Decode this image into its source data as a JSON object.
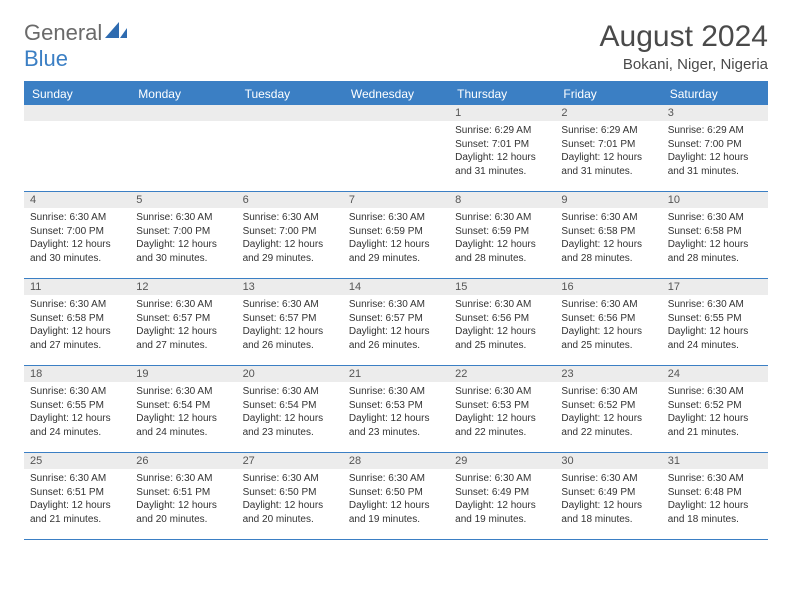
{
  "logo": {
    "word1": "General",
    "word2": "Blue"
  },
  "title": {
    "month": "August 2024",
    "location": "Bokani, Niger, Nigeria"
  },
  "colors": {
    "accent": "#3b7fc4",
    "header_text": "#ffffff",
    "daynum_bg": "#ececec",
    "body_text": "#333333",
    "logo_gray": "#6a6a6a"
  },
  "dayHeaders": [
    "Sunday",
    "Monday",
    "Tuesday",
    "Wednesday",
    "Thursday",
    "Friday",
    "Saturday"
  ],
  "weeks": [
    [
      null,
      null,
      null,
      null,
      {
        "n": "1",
        "sunrise": "Sunrise: 6:29 AM",
        "sunset": "Sunset: 7:01 PM",
        "daylight": "Daylight: 12 hours and 31 minutes."
      },
      {
        "n": "2",
        "sunrise": "Sunrise: 6:29 AM",
        "sunset": "Sunset: 7:01 PM",
        "daylight": "Daylight: 12 hours and 31 minutes."
      },
      {
        "n": "3",
        "sunrise": "Sunrise: 6:29 AM",
        "sunset": "Sunset: 7:00 PM",
        "daylight": "Daylight: 12 hours and 31 minutes."
      }
    ],
    [
      {
        "n": "4",
        "sunrise": "Sunrise: 6:30 AM",
        "sunset": "Sunset: 7:00 PM",
        "daylight": "Daylight: 12 hours and 30 minutes."
      },
      {
        "n": "5",
        "sunrise": "Sunrise: 6:30 AM",
        "sunset": "Sunset: 7:00 PM",
        "daylight": "Daylight: 12 hours and 30 minutes."
      },
      {
        "n": "6",
        "sunrise": "Sunrise: 6:30 AM",
        "sunset": "Sunset: 7:00 PM",
        "daylight": "Daylight: 12 hours and 29 minutes."
      },
      {
        "n": "7",
        "sunrise": "Sunrise: 6:30 AM",
        "sunset": "Sunset: 6:59 PM",
        "daylight": "Daylight: 12 hours and 29 minutes."
      },
      {
        "n": "8",
        "sunrise": "Sunrise: 6:30 AM",
        "sunset": "Sunset: 6:59 PM",
        "daylight": "Daylight: 12 hours and 28 minutes."
      },
      {
        "n": "9",
        "sunrise": "Sunrise: 6:30 AM",
        "sunset": "Sunset: 6:58 PM",
        "daylight": "Daylight: 12 hours and 28 minutes."
      },
      {
        "n": "10",
        "sunrise": "Sunrise: 6:30 AM",
        "sunset": "Sunset: 6:58 PM",
        "daylight": "Daylight: 12 hours and 28 minutes."
      }
    ],
    [
      {
        "n": "11",
        "sunrise": "Sunrise: 6:30 AM",
        "sunset": "Sunset: 6:58 PM",
        "daylight": "Daylight: 12 hours and 27 minutes."
      },
      {
        "n": "12",
        "sunrise": "Sunrise: 6:30 AM",
        "sunset": "Sunset: 6:57 PM",
        "daylight": "Daylight: 12 hours and 27 minutes."
      },
      {
        "n": "13",
        "sunrise": "Sunrise: 6:30 AM",
        "sunset": "Sunset: 6:57 PM",
        "daylight": "Daylight: 12 hours and 26 minutes."
      },
      {
        "n": "14",
        "sunrise": "Sunrise: 6:30 AM",
        "sunset": "Sunset: 6:57 PM",
        "daylight": "Daylight: 12 hours and 26 minutes."
      },
      {
        "n": "15",
        "sunrise": "Sunrise: 6:30 AM",
        "sunset": "Sunset: 6:56 PM",
        "daylight": "Daylight: 12 hours and 25 minutes."
      },
      {
        "n": "16",
        "sunrise": "Sunrise: 6:30 AM",
        "sunset": "Sunset: 6:56 PM",
        "daylight": "Daylight: 12 hours and 25 minutes."
      },
      {
        "n": "17",
        "sunrise": "Sunrise: 6:30 AM",
        "sunset": "Sunset: 6:55 PM",
        "daylight": "Daylight: 12 hours and 24 minutes."
      }
    ],
    [
      {
        "n": "18",
        "sunrise": "Sunrise: 6:30 AM",
        "sunset": "Sunset: 6:55 PM",
        "daylight": "Daylight: 12 hours and 24 minutes."
      },
      {
        "n": "19",
        "sunrise": "Sunrise: 6:30 AM",
        "sunset": "Sunset: 6:54 PM",
        "daylight": "Daylight: 12 hours and 24 minutes."
      },
      {
        "n": "20",
        "sunrise": "Sunrise: 6:30 AM",
        "sunset": "Sunset: 6:54 PM",
        "daylight": "Daylight: 12 hours and 23 minutes."
      },
      {
        "n": "21",
        "sunrise": "Sunrise: 6:30 AM",
        "sunset": "Sunset: 6:53 PM",
        "daylight": "Daylight: 12 hours and 23 minutes."
      },
      {
        "n": "22",
        "sunrise": "Sunrise: 6:30 AM",
        "sunset": "Sunset: 6:53 PM",
        "daylight": "Daylight: 12 hours and 22 minutes."
      },
      {
        "n": "23",
        "sunrise": "Sunrise: 6:30 AM",
        "sunset": "Sunset: 6:52 PM",
        "daylight": "Daylight: 12 hours and 22 minutes."
      },
      {
        "n": "24",
        "sunrise": "Sunrise: 6:30 AM",
        "sunset": "Sunset: 6:52 PM",
        "daylight": "Daylight: 12 hours and 21 minutes."
      }
    ],
    [
      {
        "n": "25",
        "sunrise": "Sunrise: 6:30 AM",
        "sunset": "Sunset: 6:51 PM",
        "daylight": "Daylight: 12 hours and 21 minutes."
      },
      {
        "n": "26",
        "sunrise": "Sunrise: 6:30 AM",
        "sunset": "Sunset: 6:51 PM",
        "daylight": "Daylight: 12 hours and 20 minutes."
      },
      {
        "n": "27",
        "sunrise": "Sunrise: 6:30 AM",
        "sunset": "Sunset: 6:50 PM",
        "daylight": "Daylight: 12 hours and 20 minutes."
      },
      {
        "n": "28",
        "sunrise": "Sunrise: 6:30 AM",
        "sunset": "Sunset: 6:50 PM",
        "daylight": "Daylight: 12 hours and 19 minutes."
      },
      {
        "n": "29",
        "sunrise": "Sunrise: 6:30 AM",
        "sunset": "Sunset: 6:49 PM",
        "daylight": "Daylight: 12 hours and 19 minutes."
      },
      {
        "n": "30",
        "sunrise": "Sunrise: 6:30 AM",
        "sunset": "Sunset: 6:49 PM",
        "daylight": "Daylight: 12 hours and 18 minutes."
      },
      {
        "n": "31",
        "sunrise": "Sunrise: 6:30 AM",
        "sunset": "Sunset: 6:48 PM",
        "daylight": "Daylight: 12 hours and 18 minutes."
      }
    ]
  ]
}
